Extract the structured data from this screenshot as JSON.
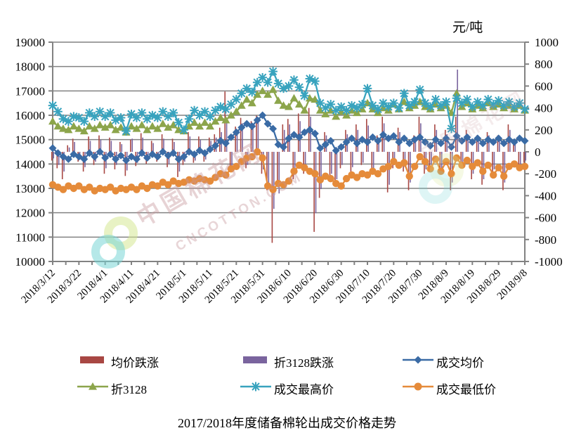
{
  "unit_label": "元/吨",
  "title": "2017/2018年度储备棉轮出成交价格走势",
  "watermark": {
    "text": "中国棉花网",
    "subtext": "CNCOTTON.COM"
  },
  "chart_data": {
    "type": "line",
    "subtype": "combo line + bar, dual axis",
    "title": "2017/2018年度储备棉轮出成交价格走势",
    "right_axis_unit": "元/吨",
    "grid": true,
    "legend_position": "bottom",
    "left_axis": {
      "min": 10000,
      "max": 19000,
      "step": 1000
    },
    "right_axis": {
      "min": -1000,
      "max": 1000,
      "step": 200
    },
    "x_tick_labels": [
      "2018/3/12",
      "2018/3/22",
      "2018/4/1",
      "2018/4/11",
      "2018/4/21",
      "2018/5/1",
      "2018/5/11",
      "2018/5/21",
      "2018/5/31",
      "2018/6/10",
      "2018/6/20",
      "2018/6/30",
      "2018/7/10",
      "2018/7/20",
      "2018/7/30",
      "2018/8/9",
      "2018/8/19",
      "2018/8/29",
      "2018/9/8"
    ],
    "points_per_tick_interval": 5,
    "series": [
      {
        "name": "均价跌涨",
        "type": "bar",
        "axis": "right",
        "color": "#A84743",
        "values": [
          -80,
          -150,
          -250,
          60,
          120,
          -90,
          -180,
          140,
          -120,
          150,
          -200,
          130,
          -160,
          90,
          -220,
          110,
          -130,
          170,
          -110,
          100,
          -90,
          160,
          -140,
          120,
          -230,
          -120,
          180,
          -100,
          140,
          -90,
          130,
          160,
          220,
          550,
          -180,
          230,
          310,
          -150,
          280,
          330,
          -200,
          -350,
          -830,
          -300,
          250,
          300,
          -250,
          350,
          -200,
          400,
          -730,
          -420,
          180,
          -250,
          -300,
          -150,
          200,
          -180,
          250,
          -120,
          300,
          -200,
          150,
          320,
          -370,
          -150,
          220,
          -180,
          -350,
          150,
          320,
          -200,
          -150,
          250,
          -180,
          200,
          -350,
          320,
          -150,
          200,
          -250,
          150,
          -300,
          180,
          -200,
          150,
          -350,
          250,
          100,
          -150,
          -100
        ]
      },
      {
        "name": "折3128跌涨",
        "type": "bar",
        "axis": "right",
        "color": "#7A649E",
        "values": [
          -60,
          -120,
          -180,
          40,
          90,
          -70,
          -140,
          100,
          -90,
          110,
          -150,
          100,
          -120,
          70,
          -170,
          120,
          -100,
          130,
          -80,
          80,
          -70,
          120,
          -110,
          90,
          -180,
          -90,
          140,
          -80,
          110,
          -70,
          100,
          130,
          180,
          300,
          -140,
          190,
          260,
          -120,
          230,
          280,
          -160,
          -280,
          -520,
          -380,
          200,
          250,
          -200,
          280,
          -160,
          320,
          -560,
          -340,
          150,
          -200,
          -250,
          -120,
          160,
          -140,
          200,
          -100,
          240,
          -160,
          120,
          260,
          -300,
          -120,
          180,
          -140,
          -280,
          120,
          260,
          -160,
          -120,
          200,
          -150,
          160,
          -280,
          750,
          -120,
          160,
          -200,
          120,
          -250,
          150,
          -160,
          120,
          -280,
          200,
          80,
          -120,
          -80
        ]
      },
      {
        "name": "成交均价",
        "type": "line",
        "marker": "diamond",
        "axis": "left",
        "color": "#3A6BA5",
        "values": [
          14650,
          14450,
          14300,
          14200,
          14400,
          14300,
          14200,
          14450,
          14300,
          14500,
          14250,
          14400,
          14200,
          14350,
          14150,
          14300,
          14200,
          14450,
          14250,
          14400,
          14300,
          14500,
          14350,
          14450,
          14200,
          14300,
          14500,
          14400,
          14550,
          14450,
          14600,
          14750,
          14950,
          14850,
          15100,
          15300,
          15500,
          15650,
          15550,
          15800,
          16000,
          15650,
          15450,
          14800,
          14700,
          15050,
          15200,
          15100,
          15300,
          15400,
          15250,
          14650,
          14800,
          14950,
          14550,
          14700,
          14900,
          15050,
          14850,
          15000,
          14900,
          15100,
          14950,
          15200,
          15050,
          15150,
          14900,
          15050,
          14850,
          15000,
          15100,
          14900,
          14750,
          15000,
          14850,
          15050,
          14700,
          15150,
          14950,
          15100,
          14900,
          15050,
          14850,
          15000,
          14900,
          15050,
          14850,
          15000,
          14900,
          15050,
          14950
        ]
      },
      {
        "name": "折3128",
        "type": "line",
        "marker": "triangle",
        "axis": "left",
        "color": "#8CA54B",
        "values": [
          15750,
          15550,
          15450,
          15400,
          15550,
          15450,
          15350,
          15550,
          15450,
          15600,
          15500,
          15600,
          15400,
          15500,
          15300,
          15550,
          15450,
          15600,
          15400,
          15550,
          15450,
          15650,
          15500,
          15600,
          15400,
          15350,
          15550,
          15700,
          15550,
          15700,
          15550,
          15750,
          15900,
          15800,
          16000,
          16150,
          16400,
          16650,
          16500,
          16850,
          17000,
          16850,
          17050,
          16600,
          16400,
          16350,
          16700,
          16450,
          16200,
          16700,
          16650,
          16200,
          16050,
          16200,
          15950,
          16150,
          16000,
          16200,
          16100,
          16250,
          16500,
          16250,
          16100,
          16300,
          16200,
          16450,
          16250,
          16550,
          16300,
          16400,
          16550,
          16350,
          16250,
          16450,
          16300,
          16400,
          16100,
          16900,
          16350,
          16500,
          16250,
          16400,
          16300,
          16500,
          16350,
          16450,
          16300,
          16400,
          16250,
          16400,
          16200
        ]
      },
      {
        "name": "成交最高价",
        "type": "line",
        "marker": "asterisk",
        "axis": "left",
        "color": "#38A3BE",
        "values": [
          16400,
          16150,
          15850,
          15750,
          15950,
          15900,
          15750,
          16100,
          15950,
          16150,
          15950,
          16100,
          15800,
          15900,
          15350,
          16050,
          15900,
          16100,
          15850,
          16000,
          15900,
          16150,
          15950,
          16100,
          15700,
          15400,
          15850,
          16200,
          16000,
          16150,
          15950,
          16200,
          16350,
          16250,
          16450,
          16650,
          16900,
          17100,
          16950,
          17350,
          17550,
          17350,
          17800,
          17300,
          17100,
          17200,
          17450,
          17150,
          16800,
          17500,
          17400,
          16500,
          16300,
          16450,
          16200,
          16350,
          16200,
          16400,
          16300,
          16450,
          17100,
          16400,
          16250,
          16500,
          16350,
          16500,
          16300,
          16900,
          16400,
          16550,
          17050,
          16500,
          16350,
          16650,
          16400,
          16550,
          15450,
          16700,
          16500,
          16650,
          16350,
          16550,
          16400,
          16650,
          16450,
          16600,
          16400,
          16550,
          16350,
          16500,
          16250
        ]
      },
      {
        "name": "成交最低价",
        "type": "line",
        "marker": "circle",
        "axis": "left",
        "color": "#E58B3A",
        "values": [
          13150,
          13050,
          12950,
          13100,
          13000,
          13100,
          12950,
          13050,
          12900,
          13000,
          12950,
          13050,
          12900,
          13000,
          12950,
          13050,
          12950,
          13100,
          13000,
          13150,
          13100,
          13250,
          13150,
          13300,
          13200,
          13250,
          13350,
          13300,
          13400,
          13350,
          13300,
          13450,
          13600,
          13550,
          13800,
          13900,
          14100,
          14250,
          14300,
          14500,
          14250,
          13100,
          12950,
          13200,
          13150,
          13300,
          13700,
          13950,
          13850,
          13700,
          13600,
          13350,
          13500,
          13400,
          13200,
          13100,
          13400,
          13550,
          13450,
          13600,
          13550,
          13700,
          13600,
          13800,
          13900,
          14100,
          13950,
          14050,
          13500,
          13900,
          14300,
          14100,
          13800,
          14200,
          13700,
          14100,
          13600,
          14250,
          13950,
          14150,
          13900,
          14050,
          13700,
          13950,
          13550,
          13850,
          13500,
          13900,
          14000,
          13850,
          13900
        ]
      }
    ]
  }
}
